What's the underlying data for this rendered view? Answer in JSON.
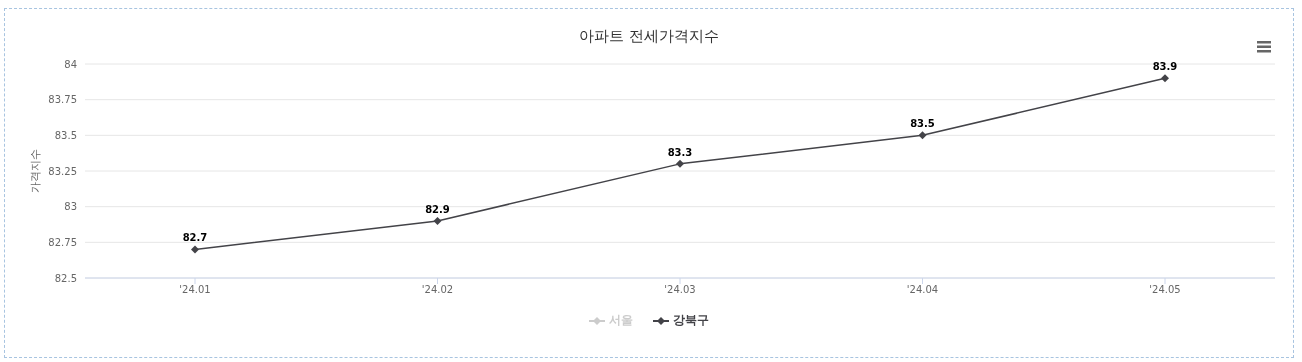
{
  "chart_data": {
    "type": "line",
    "title": "아파트 전세가격지수",
    "ylabel": "가격지수",
    "categories": [
      "'24.01",
      "'24.02",
      "'24.03",
      "'24.04",
      "'24.05"
    ],
    "series": [
      {
        "name": "서울",
        "color": "#cccccc",
        "values": [
          null,
          null,
          null,
          null,
          null
        ]
      },
      {
        "name": "강북구",
        "color": "#434348",
        "values": [
          82.7,
          82.9,
          83.3,
          83.5,
          83.9
        ]
      }
    ],
    "ylim": [
      82.5,
      84
    ],
    "yticks": [
      82.5,
      82.75,
      83,
      83.25,
      83.5,
      83.75,
      84
    ],
    "grid": "y",
    "legend": "bottom",
    "marker": "diamond",
    "line_style": "solid",
    "data_labels": true
  }
}
